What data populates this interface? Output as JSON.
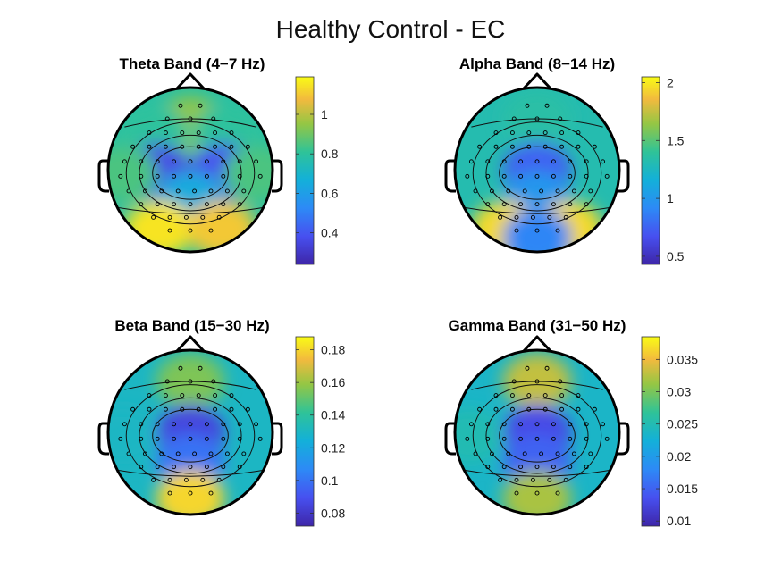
{
  "figure": {
    "title": "Healthy Control - EC"
  },
  "chart_data": [
    {
      "type": "heatmap",
      "title": "Theta Band (4−7 Hz)",
      "colorbar": {
        "ticks": [
          0.4,
          0.6,
          0.8,
          1
        ],
        "tick_labels": [
          "0.4",
          "0.6",
          "0.8",
          "1"
        ],
        "range": [
          0.24,
          1.19
        ]
      },
      "regions": [
        {
          "region": "frontal-midline",
          "value": 0.95
        },
        {
          "region": "frontal-left",
          "value": 0.8
        },
        {
          "region": "frontal-right",
          "value": 0.8
        },
        {
          "region": "central-left",
          "value": 0.36
        },
        {
          "region": "central-right",
          "value": 0.38
        },
        {
          "region": "parietal",
          "value": 0.65
        },
        {
          "region": "temporal-left",
          "value": 0.85
        },
        {
          "region": "temporal-right",
          "value": 0.85
        },
        {
          "region": "occipital-left",
          "value": 1.15
        },
        {
          "region": "occipital-right",
          "value": 1.1
        }
      ]
    },
    {
      "type": "heatmap",
      "title": "Alpha Band (8−14 Hz)",
      "colorbar": {
        "ticks": [
          0.5,
          1,
          1.5,
          2
        ],
        "tick_labels": [
          "0.5",
          "1",
          "1.5",
          "2"
        ],
        "range": [
          0.43,
          2.05
        ]
      },
      "regions": [
        {
          "region": "frontal",
          "value": 1.35
        },
        {
          "region": "central",
          "value": 0.75
        },
        {
          "region": "parietal",
          "value": 1.0
        },
        {
          "region": "occipital-left",
          "value": 1.95
        },
        {
          "region": "occipital-right",
          "value": 1.95
        },
        {
          "region": "occipital-midline",
          "value": 0.9
        }
      ]
    },
    {
      "type": "heatmap",
      "title": "Beta Band (15−30 Hz)",
      "colorbar": {
        "ticks": [
          0.08,
          0.1,
          0.12,
          0.14,
          0.16,
          0.18
        ],
        "tick_labels": [
          "0.08",
          "0.1",
          "0.12",
          "0.14",
          "0.16",
          "0.18"
        ],
        "range": [
          0.072,
          0.188
        ]
      },
      "regions": [
        {
          "region": "frontal",
          "value": 0.155
        },
        {
          "region": "central",
          "value": 0.085
        },
        {
          "region": "parietal",
          "value": 0.1
        },
        {
          "region": "temporal",
          "value": 0.13
        },
        {
          "region": "occipital",
          "value": 0.18
        }
      ]
    },
    {
      "type": "heatmap",
      "title": "Gamma Band (31−50 Hz)",
      "colorbar": {
        "ticks": [
          0.01,
          0.015,
          0.02,
          0.025,
          0.03,
          0.035
        ],
        "tick_labels": [
          "0.01",
          "0.015",
          "0.02",
          "0.025",
          "0.03",
          "0.035"
        ],
        "range": [
          0.0092,
          0.0385
        ]
      },
      "regions": [
        {
          "region": "frontal",
          "value": 0.033
        },
        {
          "region": "central",
          "value": 0.013
        },
        {
          "region": "parietal",
          "value": 0.015
        },
        {
          "region": "temporal",
          "value": 0.025
        },
        {
          "region": "occipital",
          "value": 0.032
        }
      ]
    }
  ]
}
